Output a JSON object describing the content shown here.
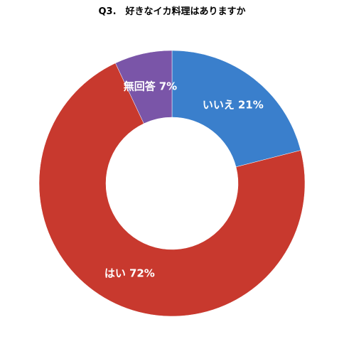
{
  "chart_data": {
    "type": "donut",
    "title": "Q3.　好きなイカ料理はありますか",
    "categories": [
      "いいえ",
      "はい",
      "無回答"
    ],
    "values": [
      21,
      72,
      7
    ],
    "value_labels": [
      "21%",
      "72%",
      "7%"
    ],
    "colors": [
      "#3a7fcc",
      "#c8392e",
      "#7a55a8"
    ]
  }
}
